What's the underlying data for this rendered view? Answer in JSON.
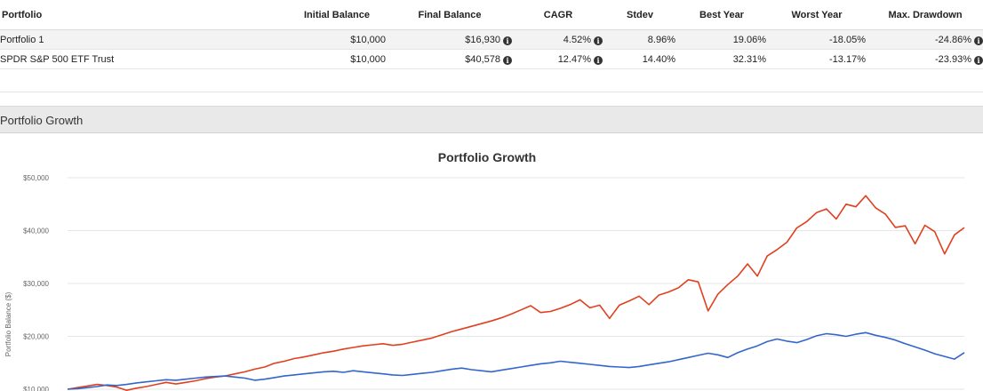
{
  "table": {
    "headers": {
      "portfolio": "Portfolio",
      "initial": "Initial Balance",
      "final": "Final Balance",
      "cagr": "CAGR",
      "stdev": "Stdev",
      "best": "Best Year",
      "worst": "Worst Year",
      "drawdown": "Max. Drawdown"
    },
    "rows": [
      {
        "name": "Portfolio 1",
        "initial": "$10,000",
        "final": "$16,930",
        "cagr": "4.52%",
        "stdev": "8.96%",
        "best": "19.06%",
        "worst": "-18.05%",
        "drawdown": "-24.86%"
      },
      {
        "name": "SPDR S&P 500 ETF Trust",
        "initial": "$10,000",
        "final": "$40,578",
        "cagr": "12.47%",
        "stdev": "14.40%",
        "best": "32.31%",
        "worst": "-13.17%",
        "drawdown": "-23.93%"
      }
    ],
    "info_icon": "info-circle-icon"
  },
  "panel": {
    "title": "Portfolio Growth"
  },
  "chart_data": {
    "type": "line",
    "title": "Portfolio Growth",
    "xlabel": "",
    "ylabel": "Portfolio Balance ($)",
    "ylim": [
      10000,
      50000
    ],
    "yticks": [
      "$10,000",
      "$20,000",
      "$30,000",
      "$40,000",
      "$50,000"
    ],
    "ytick_values": [
      10000,
      20000,
      30000,
      40000,
      50000
    ],
    "grid": true,
    "series": [
      {
        "name": "SPDR S&P 500 ETF Trust",
        "color": "#e0401f",
        "values": [
          10000,
          10300,
          10600,
          10900,
          10700,
          10400,
          9800,
          10200,
          10500,
          10900,
          11300,
          11000,
          11300,
          11600,
          12000,
          12300,
          12500,
          12900,
          13300,
          13800,
          14200,
          14900,
          15300,
          15800,
          16100,
          16500,
          16900,
          17200,
          17600,
          17900,
          18200,
          18400,
          18600,
          18300,
          18500,
          18900,
          19300,
          19700,
          20300,
          20900,
          21400,
          21900,
          22400,
          22900,
          23500,
          24200,
          25000,
          25800,
          24500,
          24700,
          25300,
          26000,
          26900,
          25400,
          25900,
          23400,
          25900,
          26700,
          27600,
          26000,
          27800,
          28400,
          29200,
          30700,
          30300,
          24800,
          28000,
          29800,
          31400,
          33700,
          31400,
          35200,
          36400,
          37800,
          40500,
          41700,
          43400,
          44100,
          42200,
          45000,
          44500,
          46600,
          44300,
          43100,
          40600,
          40900,
          37500,
          41000,
          39800,
          35600,
          39200,
          40578
        ]
      },
      {
        "name": "Portfolio 1",
        "color": "#3366cc",
        "values": [
          10000,
          10100,
          10300,
          10500,
          10800,
          10700,
          10900,
          11200,
          11400,
          11600,
          11800,
          11700,
          11900,
          12100,
          12300,
          12400,
          12500,
          12300,
          12100,
          11700,
          11900,
          12200,
          12500,
          12700,
          12900,
          13100,
          13300,
          13400,
          13200,
          13500,
          13300,
          13100,
          12900,
          12700,
          12600,
          12800,
          13000,
          13200,
          13500,
          13800,
          14000,
          13700,
          13500,
          13300,
          13600,
          13900,
          14200,
          14500,
          14800,
          15000,
          15300,
          15100,
          14900,
          14700,
          14500,
          14300,
          14200,
          14100,
          14300,
          14600,
          14900,
          15200,
          15600,
          16000,
          16400,
          16800,
          16500,
          16000,
          16900,
          17600,
          18200,
          19000,
          19500,
          19100,
          18800,
          19400,
          20100,
          20500,
          20300,
          20000,
          20400,
          20700,
          20200,
          19800,
          19300,
          18600,
          18000,
          17400,
          16700,
          16200,
          15700,
          16930
        ]
      }
    ]
  }
}
